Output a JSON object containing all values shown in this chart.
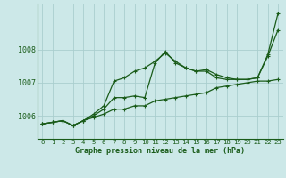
{
  "title": "Graphe pression niveau de la mer (hPa)",
  "background_color": "#cce8e8",
  "line_color": "#1a5c1a",
  "grid_color": "#aacece",
  "ylim": [
    1005.3,
    1009.4
  ],
  "yticks": [
    1006,
    1007,
    1008
  ],
  "series_wavy": [
    1005.75,
    1005.8,
    1005.85,
    1005.7,
    1005.85,
    1006.05,
    1006.3,
    1007.05,
    1007.15,
    1007.35,
    1007.45,
    1007.65,
    1007.9,
    1007.65,
    1007.45,
    1007.35,
    1007.35,
    1007.15,
    1007.1,
    1007.1,
    1007.1,
    1007.15,
    1007.8,
    1008.6
  ],
  "series_peaked": [
    1005.75,
    1005.8,
    1005.85,
    1005.7,
    1005.85,
    1006.0,
    1006.2,
    1006.55,
    1006.55,
    1006.6,
    1006.55,
    1007.6,
    1007.95,
    1007.6,
    1007.45,
    1007.35,
    1007.4,
    1007.25,
    1007.15,
    1007.1,
    1007.1,
    1007.15,
    1007.85,
    1009.1
  ],
  "series_smooth": [
    1005.75,
    1005.8,
    1005.85,
    1005.7,
    1005.85,
    1005.95,
    1006.05,
    1006.2,
    1006.2,
    1006.3,
    1006.3,
    1006.45,
    1006.5,
    1006.55,
    1006.6,
    1006.65,
    1006.7,
    1006.85,
    1006.9,
    1006.95,
    1007.0,
    1007.05,
    1007.05,
    1007.1
  ]
}
